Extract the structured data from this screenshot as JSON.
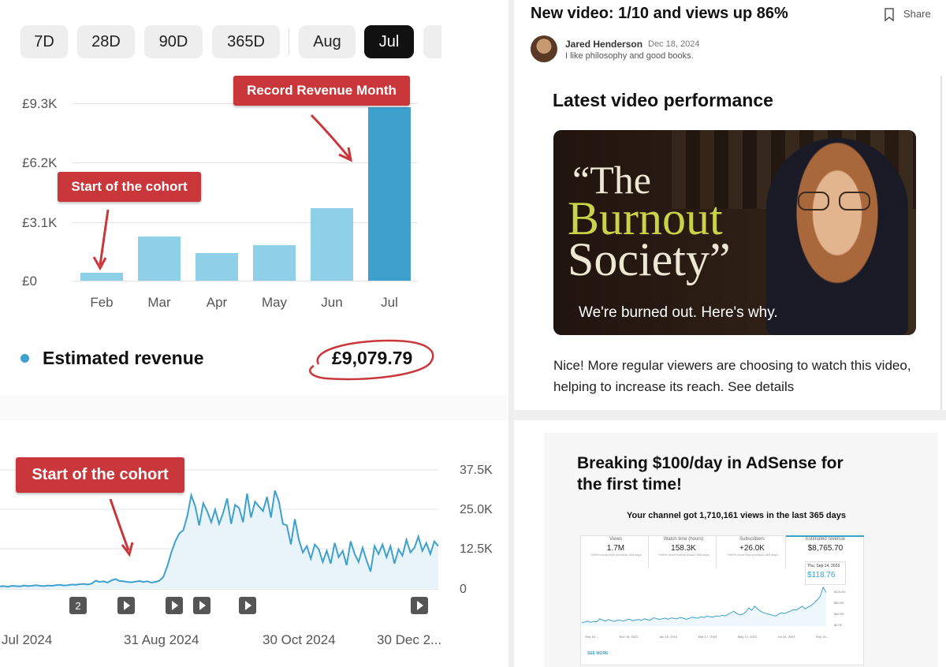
{
  "top_left": {
    "filters": [
      "7D",
      "28D",
      "90D",
      "365D",
      "Aug",
      "Jul"
    ],
    "active_filter": "Jul",
    "y_ticks": [
      "£9.3K",
      "£6.2K",
      "£3.1K",
      "£0"
    ],
    "callout_start": "Start of the cohort",
    "callout_record": "Record Revenue Month",
    "metric_label": "Estimated revenue",
    "metric_value": "£9,079.79",
    "bar_color": "#8dd0e8",
    "highlight_color": "#3ea1cd",
    "callout_color": "#c9373a"
  },
  "top_right": {
    "post_title": "New video: 1/10 and views up 86%",
    "share_label": "Share",
    "author": "Jared Henderson",
    "date": "Dec 18, 2024",
    "bio": "I like philosophy and good books.",
    "section_title": "Latest video performance",
    "thumbnail": {
      "title_line1": "“The",
      "title_line2": "Burnout",
      "title_line3": "Society”",
      "caption": "We're burned out. Here's why."
    },
    "body_text": "Nice! More regular viewers are choosing to watch this video, helping to increase its reach. See details"
  },
  "bottom_left": {
    "callout": "Start of the cohort",
    "y_ticks": [
      "37.5K",
      "25.0K",
      "12.5K",
      "0"
    ],
    "x_labels": [
      "Jul 2024",
      "31 Aug 2024",
      "30 Oct 2024",
      "30 Dec 2..."
    ],
    "badge_count": "2"
  },
  "bottom_right": {
    "headline": "Breaking $100/day in AdSense for the first time!",
    "subheading": "Your channel got 1,710,161 views in the last 365 days",
    "kpis": [
      {
        "label": "Views",
        "value": "1.7M",
        "note": "+999% more than previous 365 days"
      },
      {
        "label": "Watch time (hours)",
        "value": "158.3K",
        "note": "+999% more than previous 365 days"
      },
      {
        "label": "Subscribers",
        "value": "+26.0K",
        "note": "+999% more than previous 365 days"
      },
      {
        "label": "Estimated revenue",
        "value": "$8,765.70",
        "note": ""
      }
    ],
    "tooltip_date": "Thu, Sep 14, 2023",
    "tooltip_value": "$118.76",
    "mini_y_ticks": [
      "$120.00",
      "$80.00",
      "$40.00",
      "$0.00"
    ],
    "mini_x_labels": [
      "Sep 16,...",
      "Nov 16, 2022",
      "Jan 15, 2023",
      "Mar 17, 2023",
      "May 17, 2023",
      "Jul 16, 2023",
      "Sep 15,..."
    ],
    "see_more": "SEE MORE"
  },
  "chart_data": [
    {
      "type": "bar",
      "categories": [
        "Feb",
        "Mar",
        "Apr",
        "May",
        "Jun",
        "Jul"
      ],
      "values": [
        400,
        2300,
        1450,
        1850,
        3800,
        9080
      ],
      "ylim": [
        0,
        9300
      ],
      "highlight": "Jul"
    },
    {
      "type": "area",
      "x_labels": [
        "Jul 2024",
        "31 Aug 2024",
        "30 Oct 2024",
        "30 Dec 2..."
      ],
      "ylim": [
        0,
        37500
      ],
      "values": [
        800,
        900,
        700,
        1000,
        900,
        800,
        1100,
        900,
        1000,
        1200,
        1000,
        900,
        1100,
        1000,
        1200,
        1300,
        1100,
        1200,
        1400,
        1300,
        1500,
        1600,
        1400,
        1700,
        2600,
        2200,
        2400,
        2000,
        2700,
        3100,
        2500,
        2400,
        2200,
        2100,
        2300,
        2500,
        2200,
        2400,
        2000,
        2200,
        2600,
        3800,
        7200,
        11500,
        15000,
        17500,
        18500,
        23000,
        29500,
        26000,
        20000,
        27000,
        24500,
        21000,
        25000,
        20500,
        24000,
        28500,
        20500,
        26500,
        25500,
        21000,
        30000,
        22500,
        27500,
        26000,
        24500,
        29000,
        22500,
        31000,
        27500,
        20500,
        20000,
        14000,
        22000,
        15500,
        11500,
        13500,
        9500,
        14000,
        12500,
        8500,
        12000,
        8000,
        14500,
        10000,
        12000,
        7500,
        15000,
        11000,
        8500,
        13000,
        9000,
        5500,
        13500,
        11000,
        14000,
        10000,
        13500,
        8000,
        12500,
        10500,
        15500,
        11500,
        13000,
        16500,
        12000,
        14500,
        11000,
        15000,
        13500
      ]
    },
    {
      "type": "line",
      "ylim": [
        0,
        120
      ],
      "values": [
        10,
        12,
        15,
        11,
        14,
        13,
        22,
        18,
        15,
        20,
        16,
        14,
        18,
        17,
        15,
        19,
        21,
        16,
        18,
        20,
        17,
        22,
        19,
        18,
        25,
        23,
        20,
        22,
        24,
        21,
        25,
        23,
        22,
        26,
        24,
        21,
        23,
        27,
        25,
        24,
        28,
        26,
        30,
        28,
        27,
        31,
        29,
        33,
        31,
        35,
        40,
        45,
        38,
        34,
        36,
        42,
        55,
        48,
        60,
        52,
        45,
        40,
        38,
        35,
        33,
        30,
        36,
        40,
        38,
        42,
        45,
        50,
        48,
        55,
        60,
        52,
        58,
        63,
        70,
        80,
        90,
        118,
        102
      ]
    }
  ]
}
